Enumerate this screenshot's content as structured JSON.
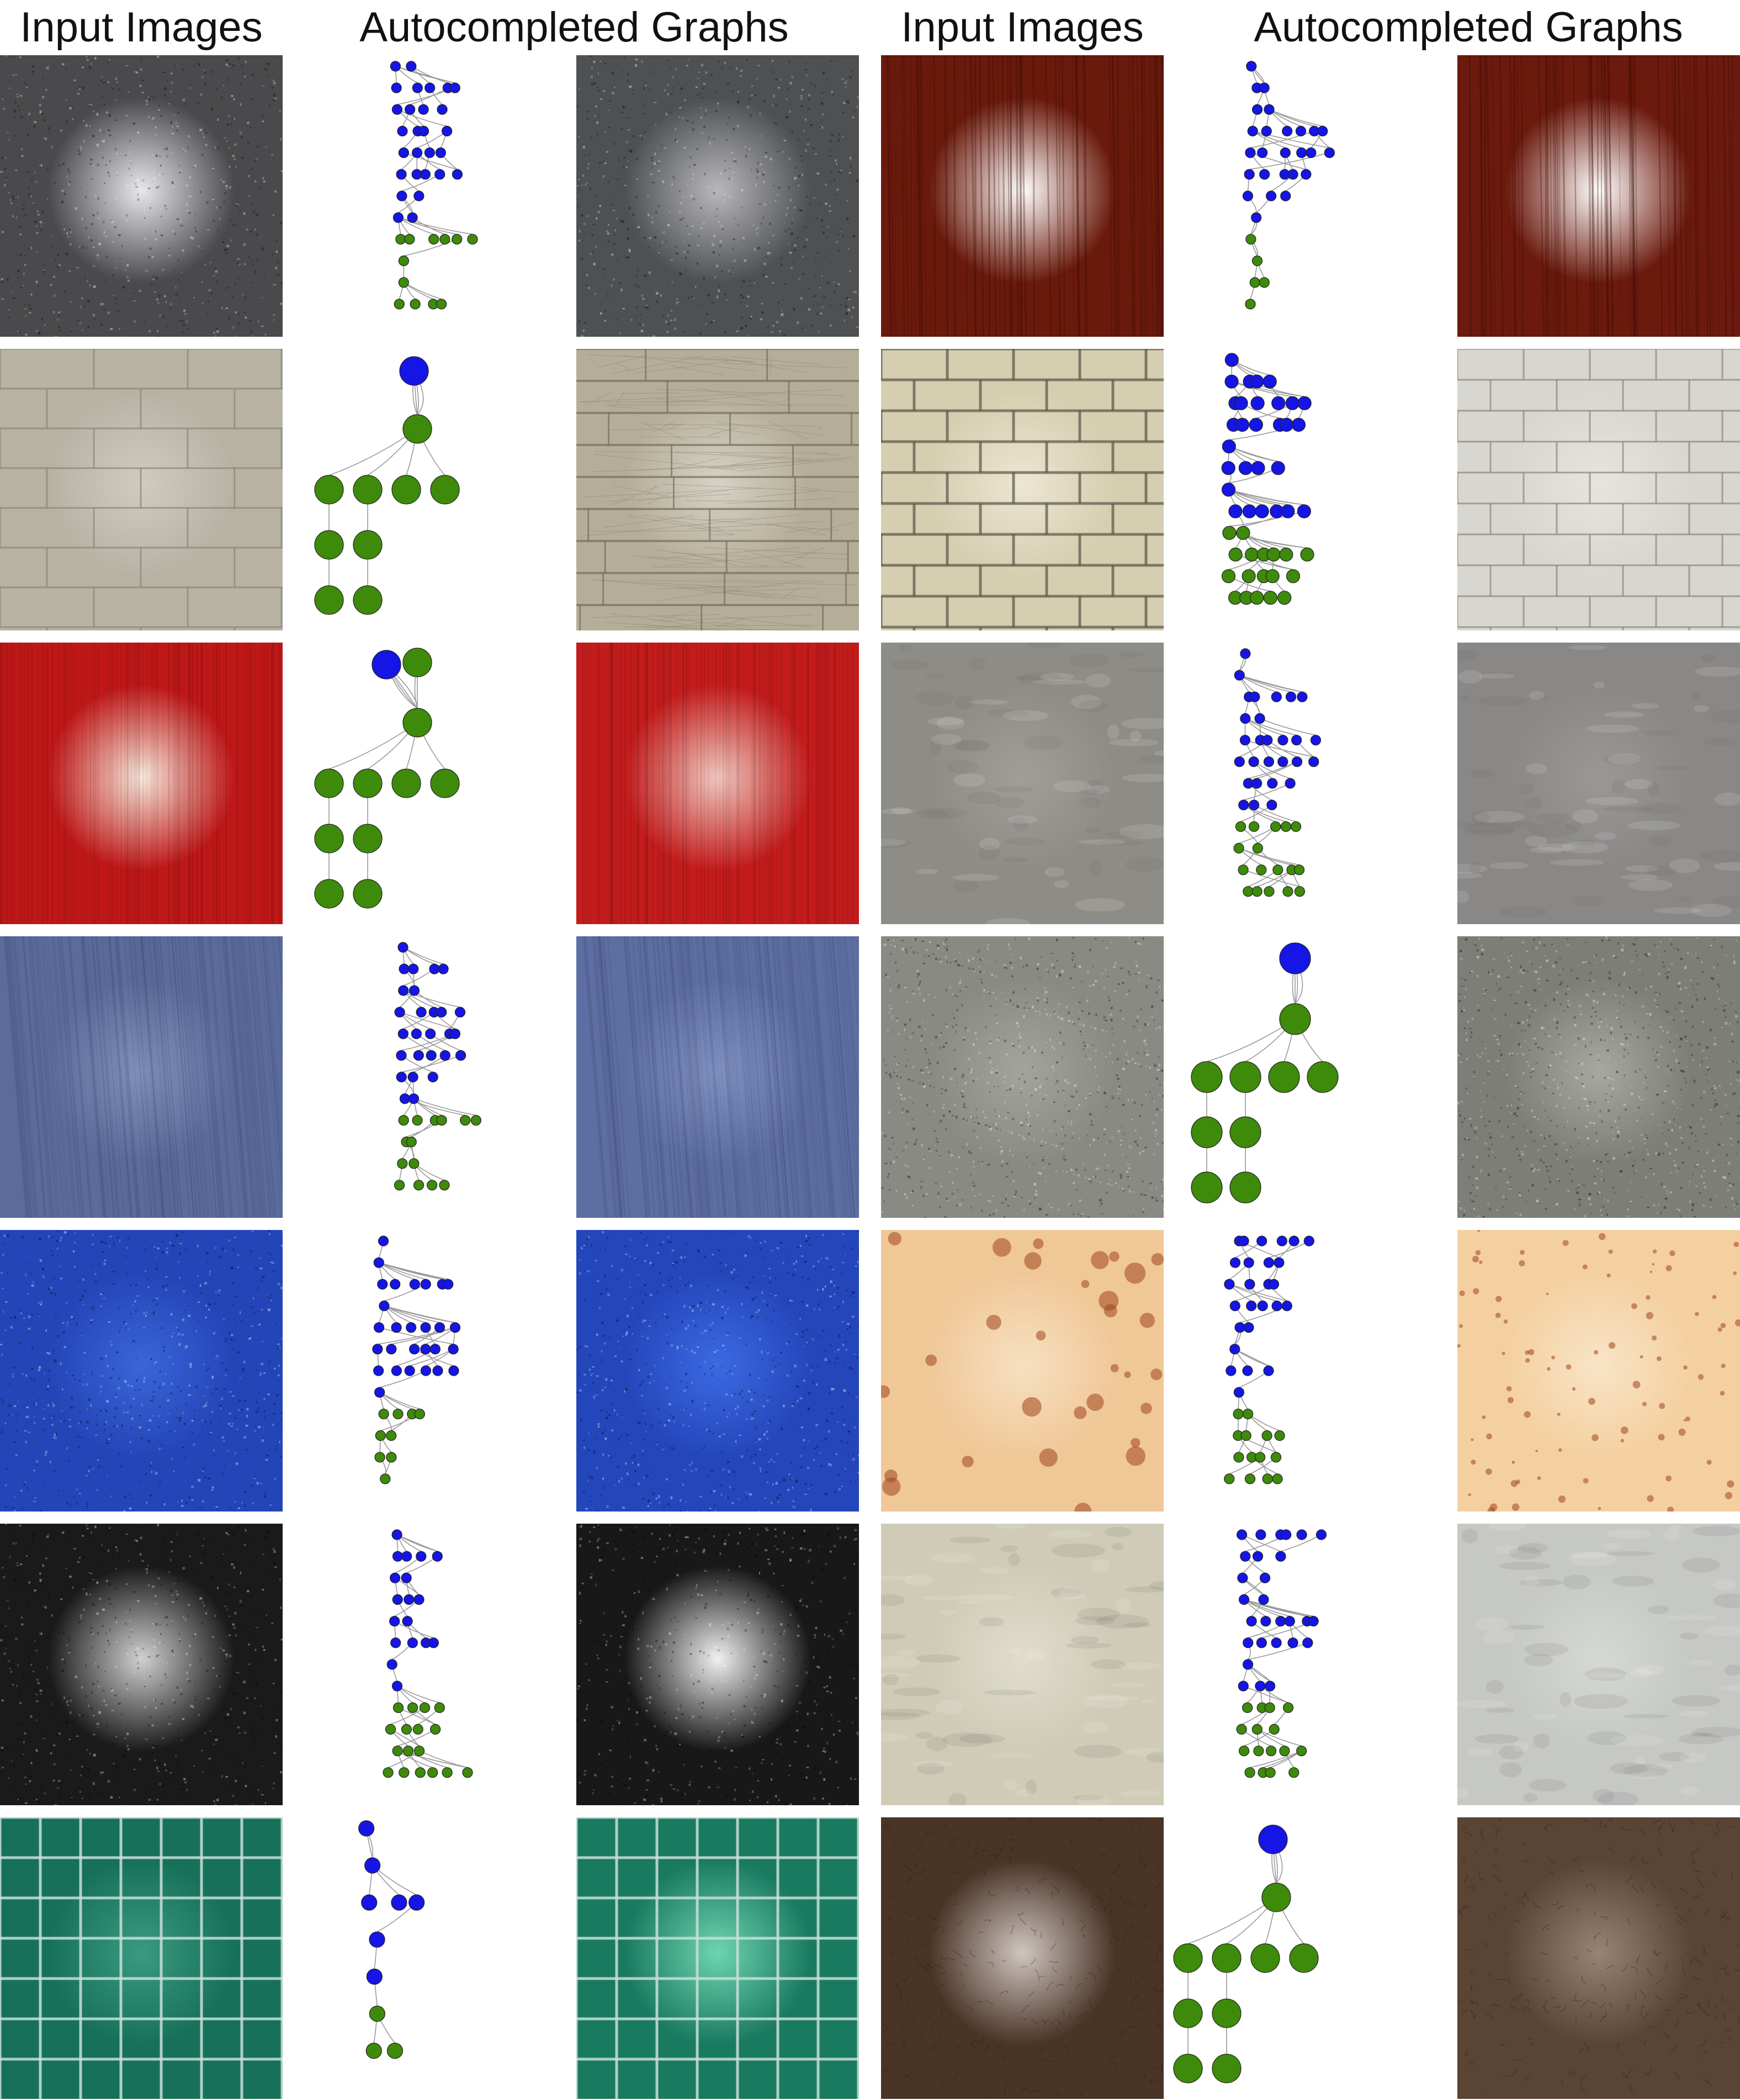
{
  "headers": [
    "Input Images",
    "Autocompleted Graphs",
    "Input Images",
    "Autocompleted Graphs"
  ],
  "left": [
    {
      "input": {
        "base": "#4a4a4c",
        "spec": "#e8e8ea",
        "spot": "speckle-gray",
        "noise": "speckle"
      },
      "graph": {
        "kind": "large",
        "seed": 11
      },
      "output": {
        "base": "#4e5052",
        "spec": "#b8b8ba",
        "noise": "speckle"
      }
    },
    {
      "input": {
        "base": "#b8b2a3",
        "spec": "#cfcbc0",
        "noise": "bricks"
      },
      "graph": {
        "kind": "small",
        "seed": 21
      },
      "output": {
        "base": "#b4ad98",
        "spec": "#d6d2c4",
        "noise": "planks"
      }
    },
    {
      "input": {
        "base": "#c01818",
        "spec": "#f8e9dc",
        "noise": "fine"
      },
      "graph": {
        "kind": "small2",
        "seed": 31
      },
      "output": {
        "base": "#c41c1c",
        "spec": "#f0c8c0",
        "noise": "fine"
      }
    },
    {
      "input": {
        "base": "#5a6b9c",
        "spec": "#8090bb",
        "noise": "denim"
      },
      "graph": {
        "kind": "large",
        "seed": 41
      },
      "output": {
        "base": "#5d6ea3",
        "spec": "#7f90c2",
        "noise": "denim"
      }
    },
    {
      "input": {
        "base": "#2345b8",
        "spec": "#3a66d8",
        "noise": "speckle"
      },
      "graph": {
        "kind": "large",
        "seed": 51
      },
      "output": {
        "base": "#2446bb",
        "spec": "#3c6ae2",
        "noise": "speckle"
      }
    },
    {
      "input": {
        "base": "#1a1a1a",
        "spec": "#d0d0d0",
        "noise": "speckle"
      },
      "graph": {
        "kind": "large",
        "seed": 61
      },
      "output": {
        "base": "#181818",
        "spec": "#f0f0f2",
        "noise": "speckle"
      }
    },
    {
      "input": {
        "base": "#17715a",
        "spec": "#3a9a80",
        "noise": "grid"
      },
      "graph": {
        "kind": "medium",
        "seed": 71
      },
      "output": {
        "base": "#1a7a60",
        "spec": "#6ed4b0",
        "noise": "grid"
      }
    }
  ],
  "right": [
    {
      "input": {
        "base": "#6a1a0c",
        "spec": "#ffffff",
        "noise": "wood"
      },
      "graph": {
        "kind": "large",
        "seed": 12
      },
      "output": {
        "base": "#6c1a0e",
        "spec": "#ffffff",
        "noise": "wood"
      }
    },
    {
      "input": {
        "base": "#d6ceb0",
        "spec": "#ece6d2",
        "noise": "bricks2"
      },
      "graph": {
        "kind": "medium2",
        "seed": 22
      },
      "output": {
        "base": "#d8d6d0",
        "spec": "#e6e4de",
        "noise": "bricks3"
      }
    },
    {
      "input": {
        "base": "#8e8c86",
        "spec": "#a09e98",
        "noise": "stone"
      },
      "graph": {
        "kind": "large",
        "seed": 32
      },
      "output": {
        "base": "#8a8886",
        "spec": "#9a9896",
        "noise": "stone"
      }
    },
    {
      "input": {
        "base": "#8a8a84",
        "spec": "#a4a49e",
        "noise": "granite"
      },
      "graph": {
        "kind": "small3",
        "seed": 42
      },
      "output": {
        "base": "#7e7e78",
        "spec": "#a8a8a2",
        "noise": "granite"
      }
    },
    {
      "input": {
        "base": "#f0c898",
        "spec": "#f6e0c0",
        "noise": "rust"
      },
      "graph": {
        "kind": "large",
        "seed": 52
      },
      "output": {
        "base": "#f4d0a0",
        "spec": "#f8e4c6",
        "noise": "rust2"
      }
    },
    {
      "input": {
        "base": "#cfcbb6",
        "spec": "#e0ddcc",
        "noise": "stone"
      },
      "graph": {
        "kind": "large",
        "seed": 62
      },
      "output": {
        "base": "#c6c8c4",
        "spec": "#d6d8d4",
        "noise": "stone"
      }
    },
    {
      "input": {
        "base": "#4a3426",
        "spec": "#cfc6c0",
        "noise": "leather"
      },
      "graph": {
        "kind": "small",
        "seed": 72
      },
      "output": {
        "base": "#5a4434",
        "spec": "#988474",
        "noise": "leather"
      }
    }
  ],
  "colors": {
    "blue_node": "#1515e6",
    "green_node": "#3e8a0a",
    "edge": "#9a9a9a",
    "node_stroke": "#222222"
  }
}
